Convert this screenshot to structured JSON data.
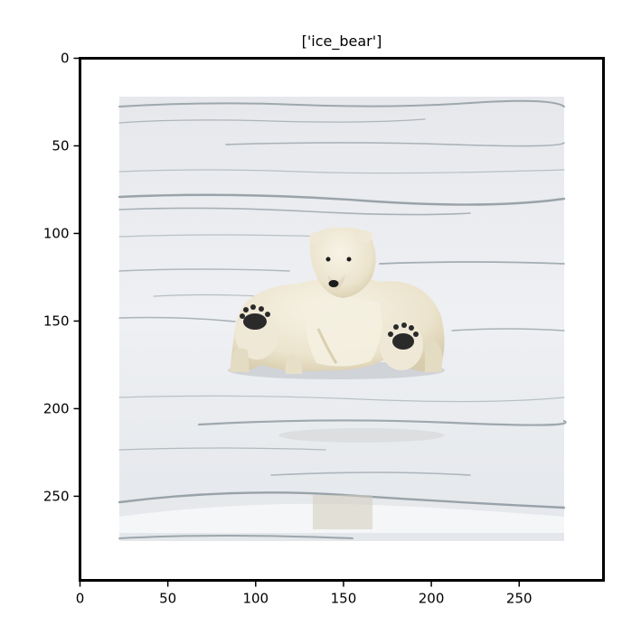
{
  "figure": {
    "title": "['ice_bear']",
    "image_subject": "polar-bear-on-sea-ice-photo"
  },
  "axes": {
    "xlim": [
      0,
      298
    ],
    "ylim": [
      298,
      0
    ],
    "x_ticks": [
      {
        "value": 0,
        "label": "0"
      },
      {
        "value": 50,
        "label": "50"
      },
      {
        "value": 100,
        "label": "100"
      },
      {
        "value": 150,
        "label": "150"
      },
      {
        "value": 200,
        "label": "200"
      },
      {
        "value": 250,
        "label": "250"
      }
    ],
    "y_ticks": [
      {
        "value": 0,
        "label": "0"
      },
      {
        "value": 50,
        "label": "50"
      },
      {
        "value": 100,
        "label": "100"
      },
      {
        "value": 150,
        "label": "150"
      },
      {
        "value": 200,
        "label": "200"
      },
      {
        "value": 250,
        "label": "250"
      }
    ]
  },
  "colors": {
    "snow": "#e9eaee",
    "snow_light": "#f3f4f6",
    "ice_crack": "#6f7f86",
    "bear_fur": "#ece6d4",
    "bear_shadow": "#cfc3a4",
    "paw_pad": "#2a2a2a",
    "frame": "#000000"
  }
}
